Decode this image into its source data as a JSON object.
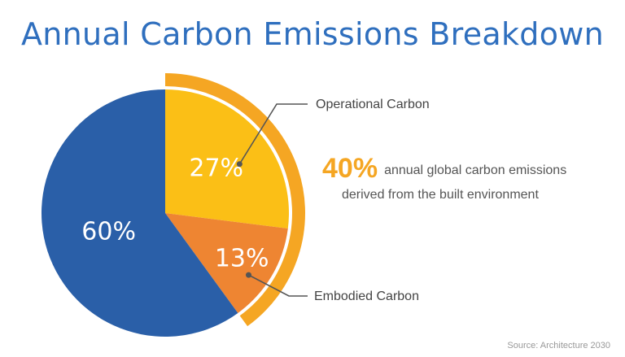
{
  "chart_data": {
    "type": "pie",
    "title": "Annual Carbon Emissions Breakdown",
    "slices": [
      {
        "label": "Operational Carbon",
        "value": 27,
        "color": "#fbbf16",
        "value_label": "27%"
      },
      {
        "label": "Embodied Carbon",
        "value": 13,
        "color": "#ee8532",
        "value_label": "13%"
      },
      {
        "label": "",
        "value": 60,
        "color": "#2a5fa8",
        "value_label": "60%"
      }
    ],
    "highlight_arc": {
      "value_label": "40%",
      "color": "#f5a623"
    },
    "annotation": {
      "value": "40%",
      "text_line1": "annual global carbon emissions",
      "text_line2": "derived from the built environment"
    },
    "source": "Source: Architecture 2030"
  }
}
